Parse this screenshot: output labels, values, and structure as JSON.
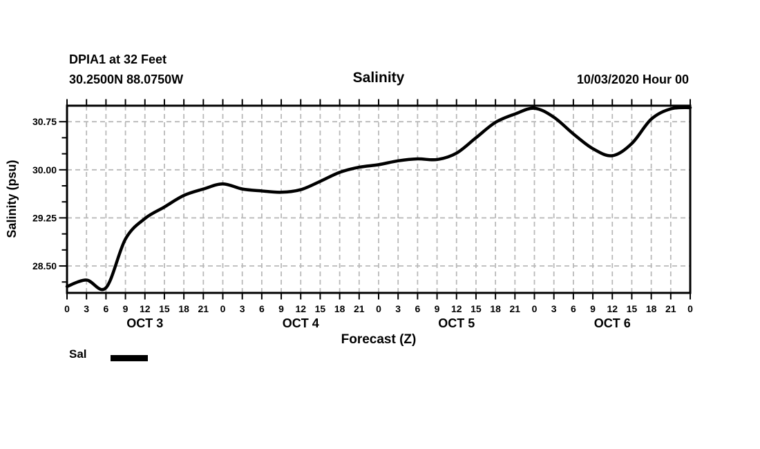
{
  "header": {
    "station": "DPIA1 at 32 Feet",
    "coords": "30.2500N 88.0750W",
    "title": "Salinity",
    "run": "10/03/2020 Hour 00"
  },
  "legend": {
    "label": "Sal"
  },
  "colors": {
    "line": "#000000",
    "grid": "#b9b9b9",
    "frame": "#000000",
    "text": "#000000",
    "background": "#ffffff"
  },
  "chart_data": {
    "type": "line",
    "title": "Salinity",
    "xlabel": "Forecast (Z)",
    "ylabel": "Salinity (psu)",
    "xlim": [
      0,
      96
    ],
    "ylim": [
      28.08,
      31.0
    ],
    "grid": true,
    "x_tick_step_hours": 3,
    "x_ticks": [
      0,
      3,
      6,
      9,
      12,
      15,
      18,
      21,
      24,
      27,
      30,
      33,
      36,
      39,
      42,
      45,
      48,
      51,
      54,
      57,
      60,
      63,
      66,
      69,
      72,
      75,
      78,
      81,
      84,
      87,
      90,
      93,
      96
    ],
    "x_tick_labels": [
      "0",
      "3",
      "6",
      "9",
      "12",
      "15",
      "18",
      "21",
      "0",
      "3",
      "6",
      "9",
      "12",
      "15",
      "18",
      "21",
      "0",
      "3",
      "6",
      "9",
      "12",
      "15",
      "18",
      "21",
      "0",
      "3",
      "6",
      "9",
      "12",
      "15",
      "18",
      "21",
      "0"
    ],
    "day_labels": [
      {
        "label": "OCT 3",
        "hour": 12
      },
      {
        "label": "OCT 4",
        "hour": 36
      },
      {
        "label": "OCT 5",
        "hour": 60
      },
      {
        "label": "OCT 6",
        "hour": 84
      }
    ],
    "y_major_ticks": [
      28.5,
      29.25,
      30.0,
      30.75
    ],
    "y_major_tick_labels": [
      "28.50",
      "29.25",
      "30.00",
      "30.75"
    ],
    "y_minor_step": 0.25,
    "series": [
      {
        "name": "Sal",
        "x": [
          0,
          3,
          6,
          9,
          12,
          15,
          18,
          21,
          24,
          27,
          30,
          33,
          36,
          39,
          42,
          45,
          48,
          51,
          54,
          57,
          60,
          63,
          66,
          69,
          72,
          75,
          78,
          81,
          84,
          87,
          90,
          93,
          96
        ],
        "values": [
          28.18,
          28.28,
          28.16,
          28.92,
          29.24,
          29.42,
          29.6,
          29.7,
          29.78,
          29.7,
          29.67,
          29.65,
          29.69,
          29.82,
          29.96,
          30.04,
          30.08,
          30.14,
          30.17,
          30.16,
          30.26,
          30.5,
          30.74,
          30.87,
          30.96,
          30.82,
          30.56,
          30.33,
          30.22,
          30.41,
          30.79,
          30.95,
          30.97
        ]
      }
    ]
  }
}
